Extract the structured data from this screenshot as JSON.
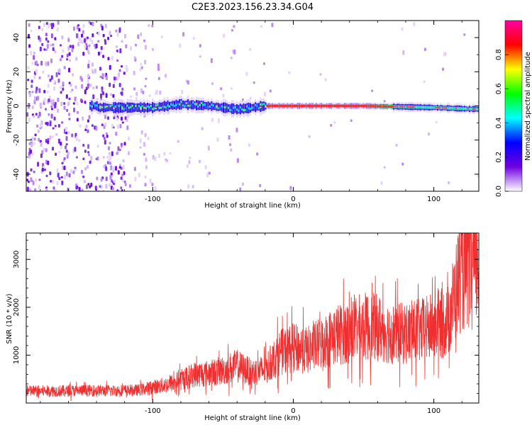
{
  "title": "C2E3.2023.156.23.34.G04",
  "chart_data": [
    {
      "type": "heatmap",
      "xlabel": "Height of straight line (km)",
      "ylabel": "Frequency (Hz)",
      "xlim": [
        -190,
        132
      ],
      "ylim": [
        -50,
        50
      ],
      "xticks": [
        -100,
        0,
        100
      ],
      "yticks": [
        -40,
        -20,
        0,
        20,
        40
      ],
      "signal_ridge": [
        {
          "x": -140,
          "y": -1
        },
        {
          "x": -120,
          "y": -1
        },
        {
          "x": -100,
          "y": -1
        },
        {
          "x": -80,
          "y": 1
        },
        {
          "x": -60,
          "y": 0
        },
        {
          "x": -40,
          "y": -2
        },
        {
          "x": -20,
          "y": 0
        },
        {
          "x": 0,
          "y": 0
        },
        {
          "x": 50,
          "y": 0
        },
        {
          "x": 100,
          "y": -1
        },
        {
          "x": 132,
          "y": -2
        }
      ],
      "colorbar": {
        "label": "Normalized spectral amplitude",
        "range": [
          0,
          1
        ],
        "ticks": [
          "0.0",
          "0.2",
          "0.4",
          "0.6",
          "0.8"
        ],
        "colors": [
          "#ffffff",
          "#7000e0",
          "#0000ff",
          "#00ffff",
          "#00ff00",
          "#ffff00",
          "#ff0000",
          "#ff00a0"
        ]
      }
    },
    {
      "type": "line",
      "xlabel": "Height of straight line (km)",
      "ylabel": "SNR (10 * v/v)",
      "xlim": [
        -190,
        132
      ],
      "ylim": [
        0,
        3550
      ],
      "xticks": [
        -100,
        0,
        100
      ],
      "yticks": [
        1000,
        2000,
        3000
      ],
      "series": [
        {
          "color": "#f03030",
          "x": [
            -190,
            -170,
            -150,
            -130,
            -110,
            -100,
            -90,
            -80,
            -70,
            -60,
            -50,
            -40,
            -30,
            -20,
            -10,
            0,
            10,
            20,
            30,
            40,
            50,
            60,
            70,
            80,
            90,
            100,
            110,
            118,
            125,
            132
          ],
          "y": [
            250,
            250,
            260,
            260,
            270,
            330,
            380,
            480,
            600,
            620,
            680,
            780,
            640,
            700,
            1050,
            1150,
            1100,
            1250,
            1420,
            1500,
            1600,
            1580,
            1450,
            1450,
            1500,
            1600,
            1700,
            2600,
            2800,
            2900
          ]
        }
      ]
    }
  ]
}
